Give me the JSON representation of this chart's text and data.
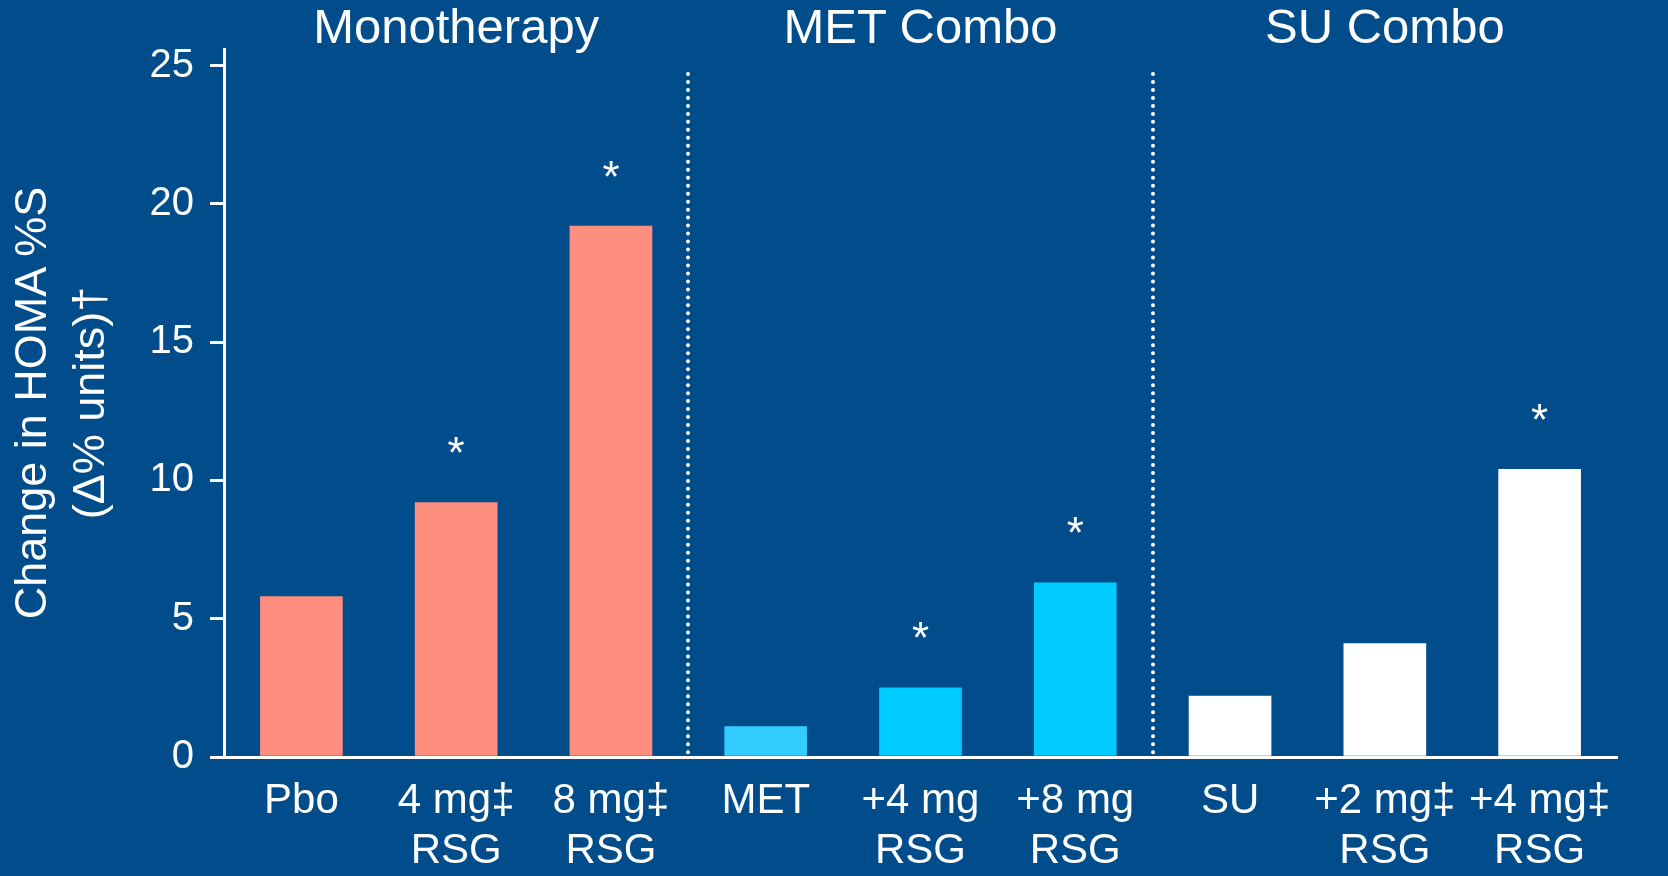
{
  "chart_data": {
    "type": "bar",
    "ylabel": "Change in HOMA %S\n(Δ% units)†",
    "categories": [
      "Pbo",
      "4 mg‡\nRSG",
      "8 mg‡\nRSG",
      "MET",
      "+4 mg\nRSG",
      "+8 mg\nRSG",
      "SU",
      "+2 mg‡\nRSG",
      "+4 mg‡\nRSG"
    ],
    "values": [
      5.8,
      9.2,
      19.2,
      1.1,
      2.5,
      6.3,
      2.2,
      4.1,
      10.4
    ],
    "value_labels": [
      null,
      "*",
      "*",
      null,
      "*",
      "*",
      null,
      null,
      "*"
    ],
    "colors": [
      "#fe8f7e",
      "#fe8f7e",
      "#fe8f7e",
      "#33ccff",
      "#00ccff",
      "#00ccff",
      "#ffffff",
      "#ffffff",
      "#ffffff"
    ],
    "ylim": [
      0,
      25.6
    ],
    "yticks": [
      0,
      5,
      10,
      15,
      20,
      25
    ],
    "annotations": [
      "Monotherapy",
      "MET Combo",
      "SU Combo"
    ]
  }
}
